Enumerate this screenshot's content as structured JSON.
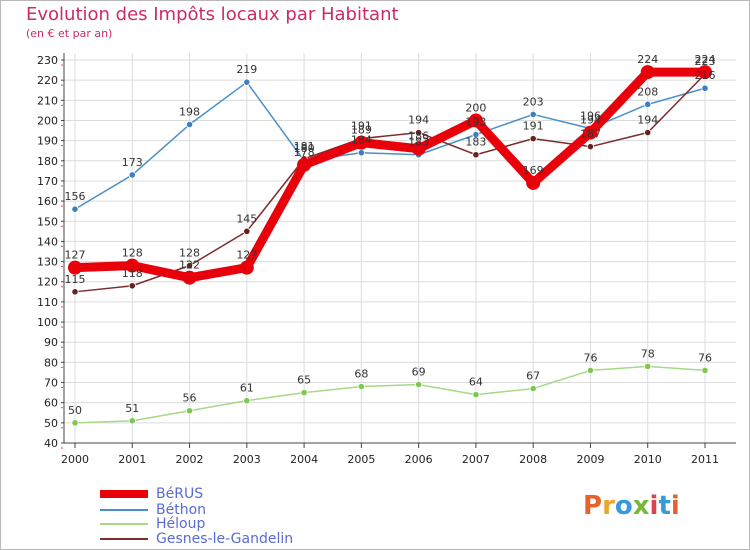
{
  "title": "Evolution des Impôts locaux par Habitant",
  "subtitle": "(en € et par an)",
  "brand": {
    "text": "Proxiti",
    "colors": [
      "#e8602c",
      "#e8a62c",
      "#3a9ad9",
      "#7ab83c",
      "#d9434b",
      "#3a9ad9",
      "#e8602c"
    ]
  },
  "chart_data": {
    "type": "line",
    "title": "Evolution des Impôts locaux par Habitant",
    "subtitle": "(en € et par an)",
    "xlabel": "",
    "ylabel": "",
    "ylim": [
      40,
      230
    ],
    "y_ticks": [
      40,
      50,
      60,
      70,
      80,
      90,
      100,
      110,
      120,
      130,
      140,
      150,
      160,
      170,
      180,
      190,
      200,
      210,
      220,
      230
    ],
    "categories": [
      "2000",
      "2001",
      "2002",
      "2003",
      "2004",
      "2005",
      "2006",
      "2007",
      "2008",
      "2009",
      "2010",
      "2011"
    ],
    "grid": true,
    "legend_position": "bottom-left",
    "series": [
      {
        "name": "Béthon",
        "color": "#4a90c8",
        "marker": "#3d7fc0",
        "values": [
          156,
          173,
          198,
          219,
          180,
          184,
          183,
          193,
          203,
          196,
          208,
          216
        ],
        "labels": [
          "156",
          "173",
          "198",
          "219",
          "180",
          "184",
          "183",
          "193",
          "203",
          "196",
          "208",
          "216"
        ]
      },
      {
        "name": "Gesnes-le-Gandelin",
        "color": "#7a2e2e",
        "marker": "#6b2020",
        "values": [
          115,
          118,
          128,
          145,
          181,
          191,
          194,
          183,
          191,
          187,
          194,
          223
        ],
        "labels": [
          "115",
          "118",
          "128",
          "145",
          "181",
          "191",
          "194",
          "183",
          "191",
          "187",
          "194",
          "223"
        ]
      },
      {
        "name": "Héloup",
        "color": "#a8d888",
        "marker": "#7cc850",
        "values": [
          50,
          51,
          56,
          61,
          65,
          68,
          69,
          64,
          67,
          76,
          78,
          76
        ],
        "labels": [
          "50",
          "51",
          "56",
          "61",
          "65",
          "68",
          "69",
          "64",
          "67",
          "76",
          "78",
          "76"
        ]
      },
      {
        "name": "BéRUS",
        "color": "#e8000b",
        "marker": "#e8000b",
        "values": [
          127,
          128,
          122,
          127,
          178,
          189,
          186,
          200,
          169,
          194,
          224,
          224
        ],
        "labels": [
          "127",
          "128",
          "122",
          "127",
          "178",
          "189",
          "186",
          "200",
          "169",
          "194",
          "224",
          "224"
        ]
      }
    ],
    "legend": [
      {
        "name": "BéRUS",
        "color": "#e8000b"
      },
      {
        "name": "Béthon",
        "color": "#4a90c8"
      },
      {
        "name": "Héloup",
        "color": "#a8d888"
      },
      {
        "name": "Gesnes-le-Gandelin",
        "color": "#7a2e2e"
      }
    ]
  }
}
